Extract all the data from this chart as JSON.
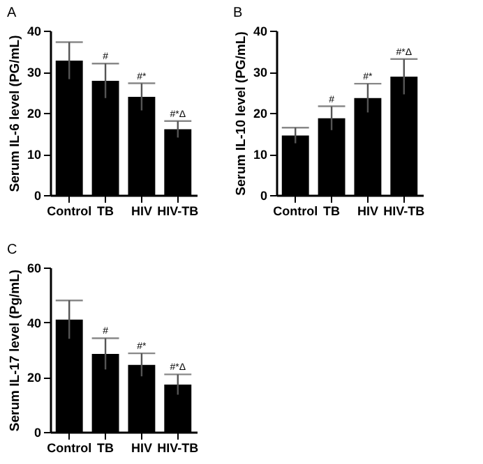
{
  "chart_data": [
    {
      "type": "bar",
      "title": "A",
      "ylabel": "Serum IL-6 level (PG/mL)",
      "categories": [
        "Control",
        "TB",
        "HIV",
        "HIV-TB"
      ],
      "series": [
        {
          "color": "#000000",
          "values": [
            32.7,
            27.8,
            23.9,
            16.0
          ],
          "errors": [
            4.5,
            4.2,
            3.3,
            2.0
          ]
        }
      ],
      "ylim": [
        0,
        40
      ],
      "yticks": [
        0,
        10,
        20,
        30,
        40
      ],
      "grid": false,
      "annotations": [
        {
          "text": "#",
          "x": "TB",
          "y": 32.0
        },
        {
          "text": "#*",
          "x": "HIV",
          "y": 27.2
        },
        {
          "text": "#*Δ",
          "x": "HIV-TB",
          "y": 18.0
        }
      ]
    },
    {
      "type": "bar",
      "title": "B",
      "ylabel": "Serum IL-10 level (PG/mL)",
      "categories": [
        "Control",
        "TB",
        "HIV",
        "HIV-TB"
      ],
      "series": [
        {
          "color": "#000000",
          "values": [
            14.5,
            18.7,
            23.6,
            28.8
          ],
          "errors": [
            1.9,
            2.9,
            3.5,
            4.3
          ]
        }
      ],
      "ylim": [
        0,
        40
      ],
      "yticks": [
        0,
        10,
        20,
        30,
        40
      ],
      "grid": false,
      "annotations": [
        {
          "text": "#",
          "x": "TB",
          "y": 21.6
        },
        {
          "text": "#*",
          "x": "HIV",
          "y": 27.1
        },
        {
          "text": "#*Δ",
          "x": "HIV-TB",
          "y": 33.1
        }
      ]
    },
    {
      "type": "bar",
      "title": "C",
      "ylabel": "Serum IL-17 level (Pg/mL)",
      "categories": [
        "Control",
        "TB",
        "HIV",
        "HIV-TB"
      ],
      "series": [
        {
          "color": "#000000",
          "values": [
            41.0,
            28.5,
            24.5,
            17.3
          ],
          "errors": [
            7.0,
            5.7,
            4.2,
            3.7
          ]
        }
      ],
      "ylim": [
        0,
        60
      ],
      "yticks": [
        0,
        20,
        40,
        60
      ],
      "grid": false,
      "annotations": [
        {
          "text": "#",
          "x": "TB",
          "y": 34.2
        },
        {
          "text": "#*",
          "x": "HIV",
          "y": 28.7
        },
        {
          "text": "#*Δ",
          "x": "HIV-TB",
          "y": 21.0
        }
      ]
    }
  ]
}
